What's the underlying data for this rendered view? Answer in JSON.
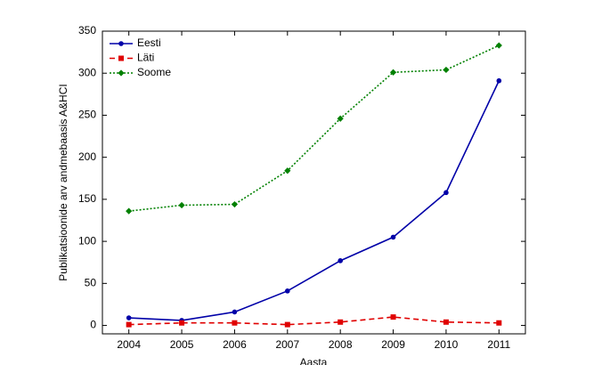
{
  "chart_data": {
    "type": "line",
    "xlabel": "Aasta",
    "ylabel": "Publikatsioonide arv andmebaasis A&HCI",
    "x": [
      2004,
      2005,
      2006,
      2007,
      2008,
      2009,
      2010,
      2011
    ],
    "series": [
      {
        "name": "Eesti",
        "color": "#0000a8",
        "line_style": "solid",
        "marker": "circle",
        "values": [
          9,
          6,
          16,
          41,
          77,
          105,
          158,
          291
        ]
      },
      {
        "name": "Läti",
        "color": "#e00000",
        "line_style": "dashed",
        "marker": "square",
        "values": [
          1,
          3,
          3,
          1,
          4,
          10,
          4,
          3
        ]
      },
      {
        "name": "Soome",
        "color": "#008000",
        "line_style": "dotted",
        "marker": "diamond",
        "values": [
          136,
          143,
          144,
          184,
          246,
          301,
          304,
          333
        ]
      }
    ],
    "xlim": [
      2003.5,
      2011.5
    ],
    "xticks": [
      2004,
      2005,
      2006,
      2007,
      2008,
      2009,
      2010,
      2011
    ],
    "ylim": [
      -10,
      350
    ],
    "yticks": [
      0,
      50,
      100,
      150,
      200,
      250,
      300,
      350
    ],
    "legend": "upper left",
    "grid": false
  }
}
